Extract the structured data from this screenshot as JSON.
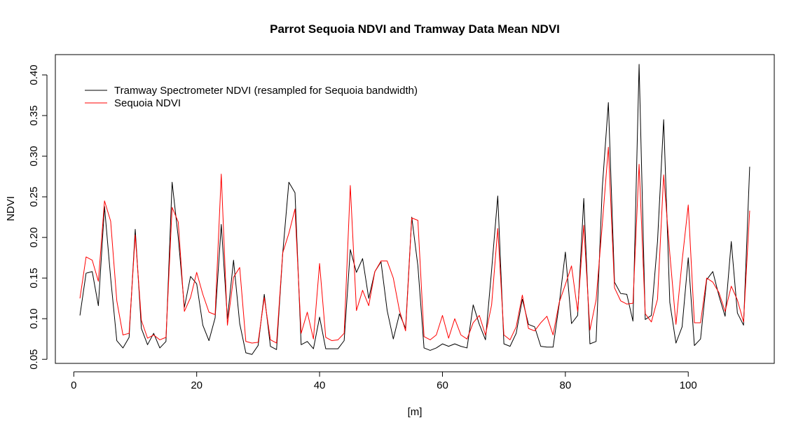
{
  "chart_data": {
    "type": "line",
    "title": "Parrot Sequoia NDVI and Tramway Data Mean NDVI",
    "xlabel": "[m]",
    "ylabel": "NDVI",
    "xlim": [
      -3,
      114
    ],
    "ylim": [
      0.045,
      0.425
    ],
    "xticks": [
      0,
      20,
      40,
      60,
      80,
      100
    ],
    "yticks": [
      0.05,
      0.1,
      0.15,
      0.2,
      0.25,
      0.3,
      0.35,
      0.4
    ],
    "ytick_labels": [
      "0.05",
      "0.10",
      "0.15",
      "0.20",
      "0.25",
      "0.30",
      "0.35",
      "0.40"
    ],
    "legend_position": "top-left",
    "x": [
      1,
      2,
      3,
      4,
      5,
      6,
      7,
      8,
      9,
      10,
      11,
      12,
      13,
      14,
      15,
      16,
      17,
      18,
      19,
      20,
      21,
      22,
      23,
      24,
      25,
      26,
      27,
      28,
      29,
      30,
      31,
      32,
      33,
      34,
      35,
      36,
      37,
      38,
      39,
      40,
      41,
      42,
      43,
      44,
      45,
      46,
      47,
      48,
      49,
      50,
      51,
      52,
      53,
      54,
      55,
      56,
      57,
      58,
      59,
      60,
      61,
      62,
      63,
      64,
      65,
      66,
      67,
      68,
      69,
      70,
      71,
      72,
      73,
      74,
      75,
      76,
      77,
      78,
      79,
      80,
      81,
      82,
      83,
      84,
      85,
      86,
      87,
      88,
      89,
      90,
      91,
      92,
      93,
      94,
      95,
      96,
      97,
      98,
      99,
      100,
      101,
      102,
      103,
      104,
      105,
      106,
      107,
      108,
      109,
      110
    ],
    "series": [
      {
        "name": "Tramway Spectrometer NDVI (resampled for Sequoia bandwidth)",
        "color": "#000000",
        "values": [
          0.104,
          0.156,
          0.158,
          0.116,
          0.238,
          0.15,
          0.073,
          0.064,
          0.077,
          0.21,
          0.088,
          0.068,
          0.082,
          0.064,
          0.072,
          0.268,
          0.2,
          0.114,
          0.152,
          0.143,
          0.092,
          0.073,
          0.101,
          0.216,
          0.1,
          0.172,
          0.094,
          0.058,
          0.056,
          0.067,
          0.13,
          0.066,
          0.062,
          0.18,
          0.268,
          0.255,
          0.068,
          0.072,
          0.063,
          0.102,
          0.063,
          0.063,
          0.063,
          0.073,
          0.185,
          0.157,
          0.174,
          0.125,
          0.158,
          0.17,
          0.11,
          0.075,
          0.106,
          0.088,
          0.225,
          0.165,
          0.064,
          0.061,
          0.064,
          0.069,
          0.066,
          0.069,
          0.066,
          0.064,
          0.117,
          0.093,
          0.074,
          0.16,
          0.251,
          0.069,
          0.066,
          0.082,
          0.124,
          0.093,
          0.09,
          0.066,
          0.065,
          0.065,
          0.118,
          0.182,
          0.094,
          0.104,
          0.248,
          0.069,
          0.072,
          0.26,
          0.366,
          0.145,
          0.131,
          0.13,
          0.097,
          0.413,
          0.099,
          0.104,
          0.195,
          0.345,
          0.12,
          0.07,
          0.09,
          0.175,
          0.067,
          0.075,
          0.148,
          0.158,
          0.128,
          0.103,
          0.195,
          0.107,
          0.092,
          0.287
        ]
      },
      {
        "name": "Sequoia NDVI",
        "color": "#ff0000",
        "values": [
          0.125,
          0.176,
          0.172,
          0.146,
          0.245,
          0.22,
          0.122,
          0.08,
          0.082,
          0.203,
          0.098,
          0.076,
          0.08,
          0.074,
          0.077,
          0.237,
          0.219,
          0.109,
          0.126,
          0.157,
          0.13,
          0.108,
          0.105,
          0.278,
          0.092,
          0.151,
          0.163,
          0.072,
          0.07,
          0.071,
          0.126,
          0.074,
          0.07,
          0.181,
          0.205,
          0.235,
          0.082,
          0.108,
          0.075,
          0.168,
          0.077,
          0.073,
          0.074,
          0.082,
          0.264,
          0.11,
          0.135,
          0.116,
          0.158,
          0.171,
          0.171,
          0.15,
          0.11,
          0.085,
          0.224,
          0.221,
          0.078,
          0.074,
          0.08,
          0.104,
          0.076,
          0.1,
          0.08,
          0.075,
          0.095,
          0.104,
          0.08,
          0.117,
          0.211,
          0.08,
          0.074,
          0.09,
          0.129,
          0.088,
          0.085,
          0.095,
          0.103,
          0.08,
          0.12,
          0.142,
          0.165,
          0.109,
          0.215,
          0.086,
          0.123,
          0.215,
          0.311,
          0.138,
          0.122,
          0.118,
          0.119,
          0.29,
          0.106,
          0.096,
          0.124,
          0.277,
          0.18,
          0.093,
          0.171,
          0.24,
          0.095,
          0.095,
          0.15,
          0.145,
          0.132,
          0.109,
          0.14,
          0.123,
          0.096,
          0.233
        ]
      }
    ]
  }
}
